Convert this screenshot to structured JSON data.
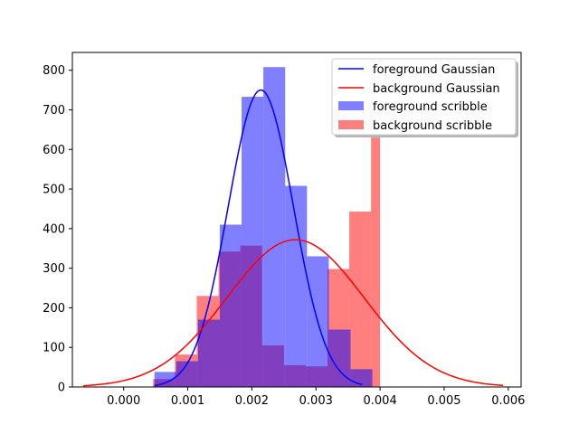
{
  "chart_data": {
    "type": "histogram-with-gaussian-fit",
    "title": "",
    "xlabel": "",
    "ylabel": "",
    "xlim": [
      -0.0008,
      0.0062
    ],
    "ylim": [
      0,
      845
    ],
    "x_ticks": [
      0.0,
      0.001,
      0.002,
      0.003,
      0.004,
      0.005,
      0.006
    ],
    "x_tick_labels": [
      "0.000",
      "0.001",
      "0.002",
      "0.003",
      "0.004",
      "0.005",
      "0.006"
    ],
    "y_ticks": [
      0,
      100,
      200,
      300,
      400,
      500,
      600,
      700,
      800
    ],
    "y_tick_labels": [
      "0",
      "100",
      "200",
      "300",
      "400",
      "500",
      "600",
      "700",
      "800"
    ],
    "grid": false,
    "legend_position": "top-right",
    "series": [
      {
        "name": "foreground Gaussian",
        "kind": "line",
        "color": "#0000ff",
        "mean": 0.00214,
        "std": 0.00051,
        "peak": 750,
        "x_range": [
          0.00048,
          0.00372
        ]
      },
      {
        "name": "background Gaussian",
        "kind": "line",
        "color": "#ff0000",
        "mean": 0.00268,
        "std": 0.00107,
        "peak": 372,
        "x_range": [
          -0.00063,
          0.00592
        ]
      },
      {
        "name": "foreground scribble",
        "kind": "bar",
        "color": "#0000ff",
        "opacity": 0.5,
        "bin_edges": [
          0.00048,
          0.00082,
          0.00116,
          0.0015,
          0.00184,
          0.00218,
          0.00252,
          0.00286,
          0.0032,
          0.00354,
          0.00388
        ],
        "counts": [
          38,
          65,
          170,
          410,
          733,
          808,
          508,
          330,
          145,
          45
        ]
      },
      {
        "name": "background scribble",
        "kind": "bar",
        "color": "#ff0000",
        "opacity": 0.5,
        "bin_edges": [
          0.00046,
          0.0008,
          0.00114,
          0.00148,
          0.00182,
          0.00216,
          0.0025,
          0.00284,
          0.00318,
          0.00352,
          0.00386,
          0.004
        ],
        "counts": [
          20,
          82,
          230,
          342,
          357,
          105,
          55,
          52,
          298,
          443,
          630
        ]
      }
    ]
  }
}
